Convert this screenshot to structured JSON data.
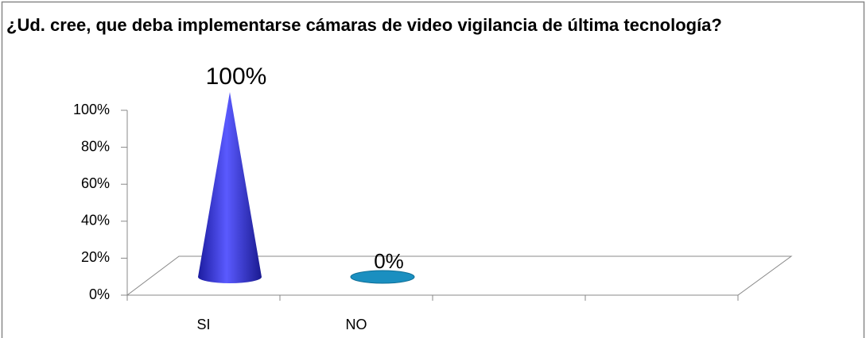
{
  "chart_data": {
    "type": "cone3d",
    "title": "¿Ud. cree, que deba implementarse cámaras de video vigilancia de última tecnología?",
    "categories": [
      "SI",
      "NO",
      null,
      null
    ],
    "values": [
      100,
      0,
      null,
      null
    ],
    "value_labels": [
      "100%",
      "0%",
      null,
      null
    ],
    "colors": [
      "#3a3ae0",
      "#1a8fc0",
      null,
      null
    ],
    "ylim": [
      0,
      100
    ],
    "yticks": [
      {
        "value": 0,
        "label": "0%"
      },
      {
        "value": 20,
        "label": "20%"
      },
      {
        "value": 40,
        "label": "40%"
      },
      {
        "value": 60,
        "label": "60%"
      },
      {
        "value": 80,
        "label": "80%"
      },
      {
        "value": 100,
        "label": "100%"
      }
    ]
  }
}
